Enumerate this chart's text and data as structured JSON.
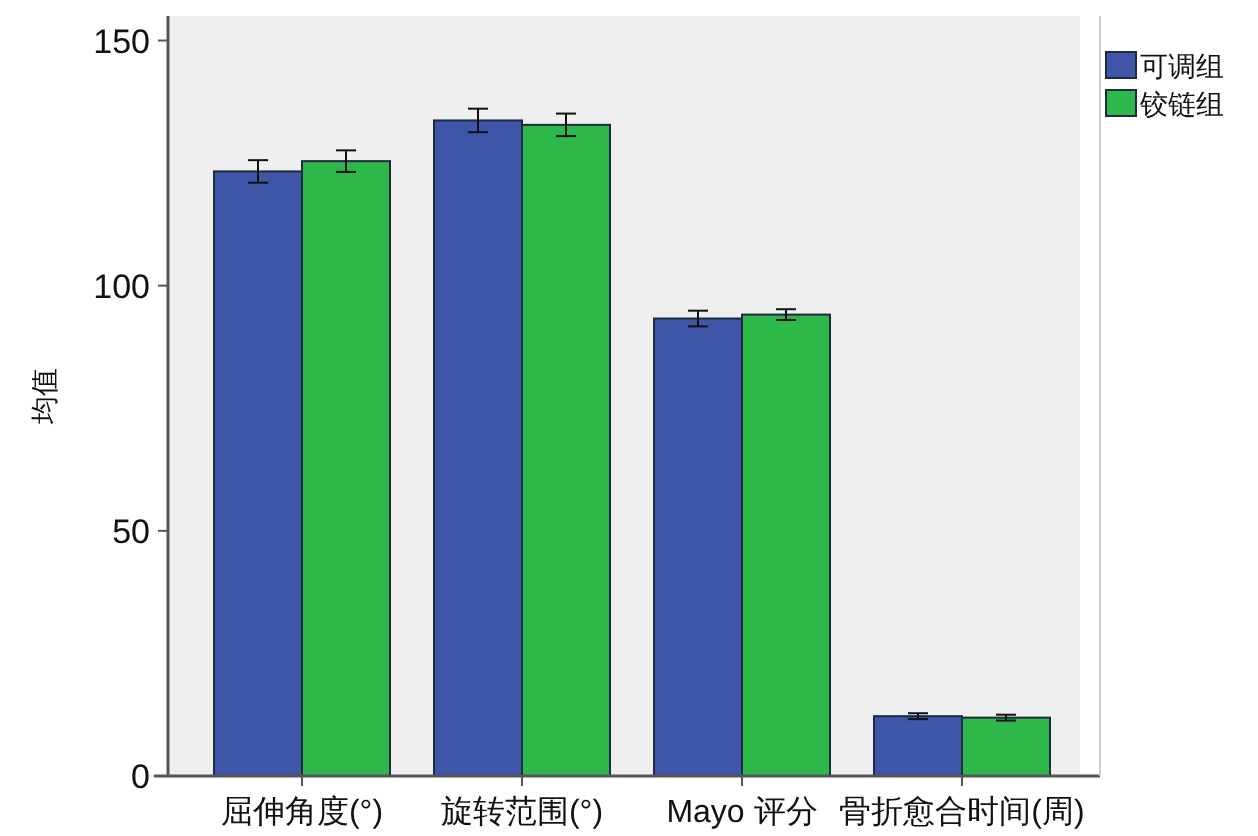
{
  "chart_data": {
    "type": "bar",
    "ylabel": "均值",
    "categories": [
      "屈伸角度(°)",
      "旋转范围(°)",
      "Mayo 评分",
      "骨折愈合时间(周)"
    ],
    "series": [
      {
        "name": "可调组",
        "color": "#3e55a8",
        "values": [
          123.3,
          133.7,
          93.3,
          12.2
        ],
        "errors": [
          2.3,
          2.4,
          1.6,
          0.6
        ]
      },
      {
        "name": "铰链组",
        "color": "#2eb84a",
        "values": [
          125.4,
          132.8,
          94.1,
          11.9
        ],
        "errors": [
          2.2,
          2.3,
          1.1,
          0.6
        ]
      }
    ],
    "ylim": [
      0,
      155
    ],
    "yticks": [
      0,
      50,
      100,
      150
    ],
    "grid": false,
    "legend": "top right"
  }
}
